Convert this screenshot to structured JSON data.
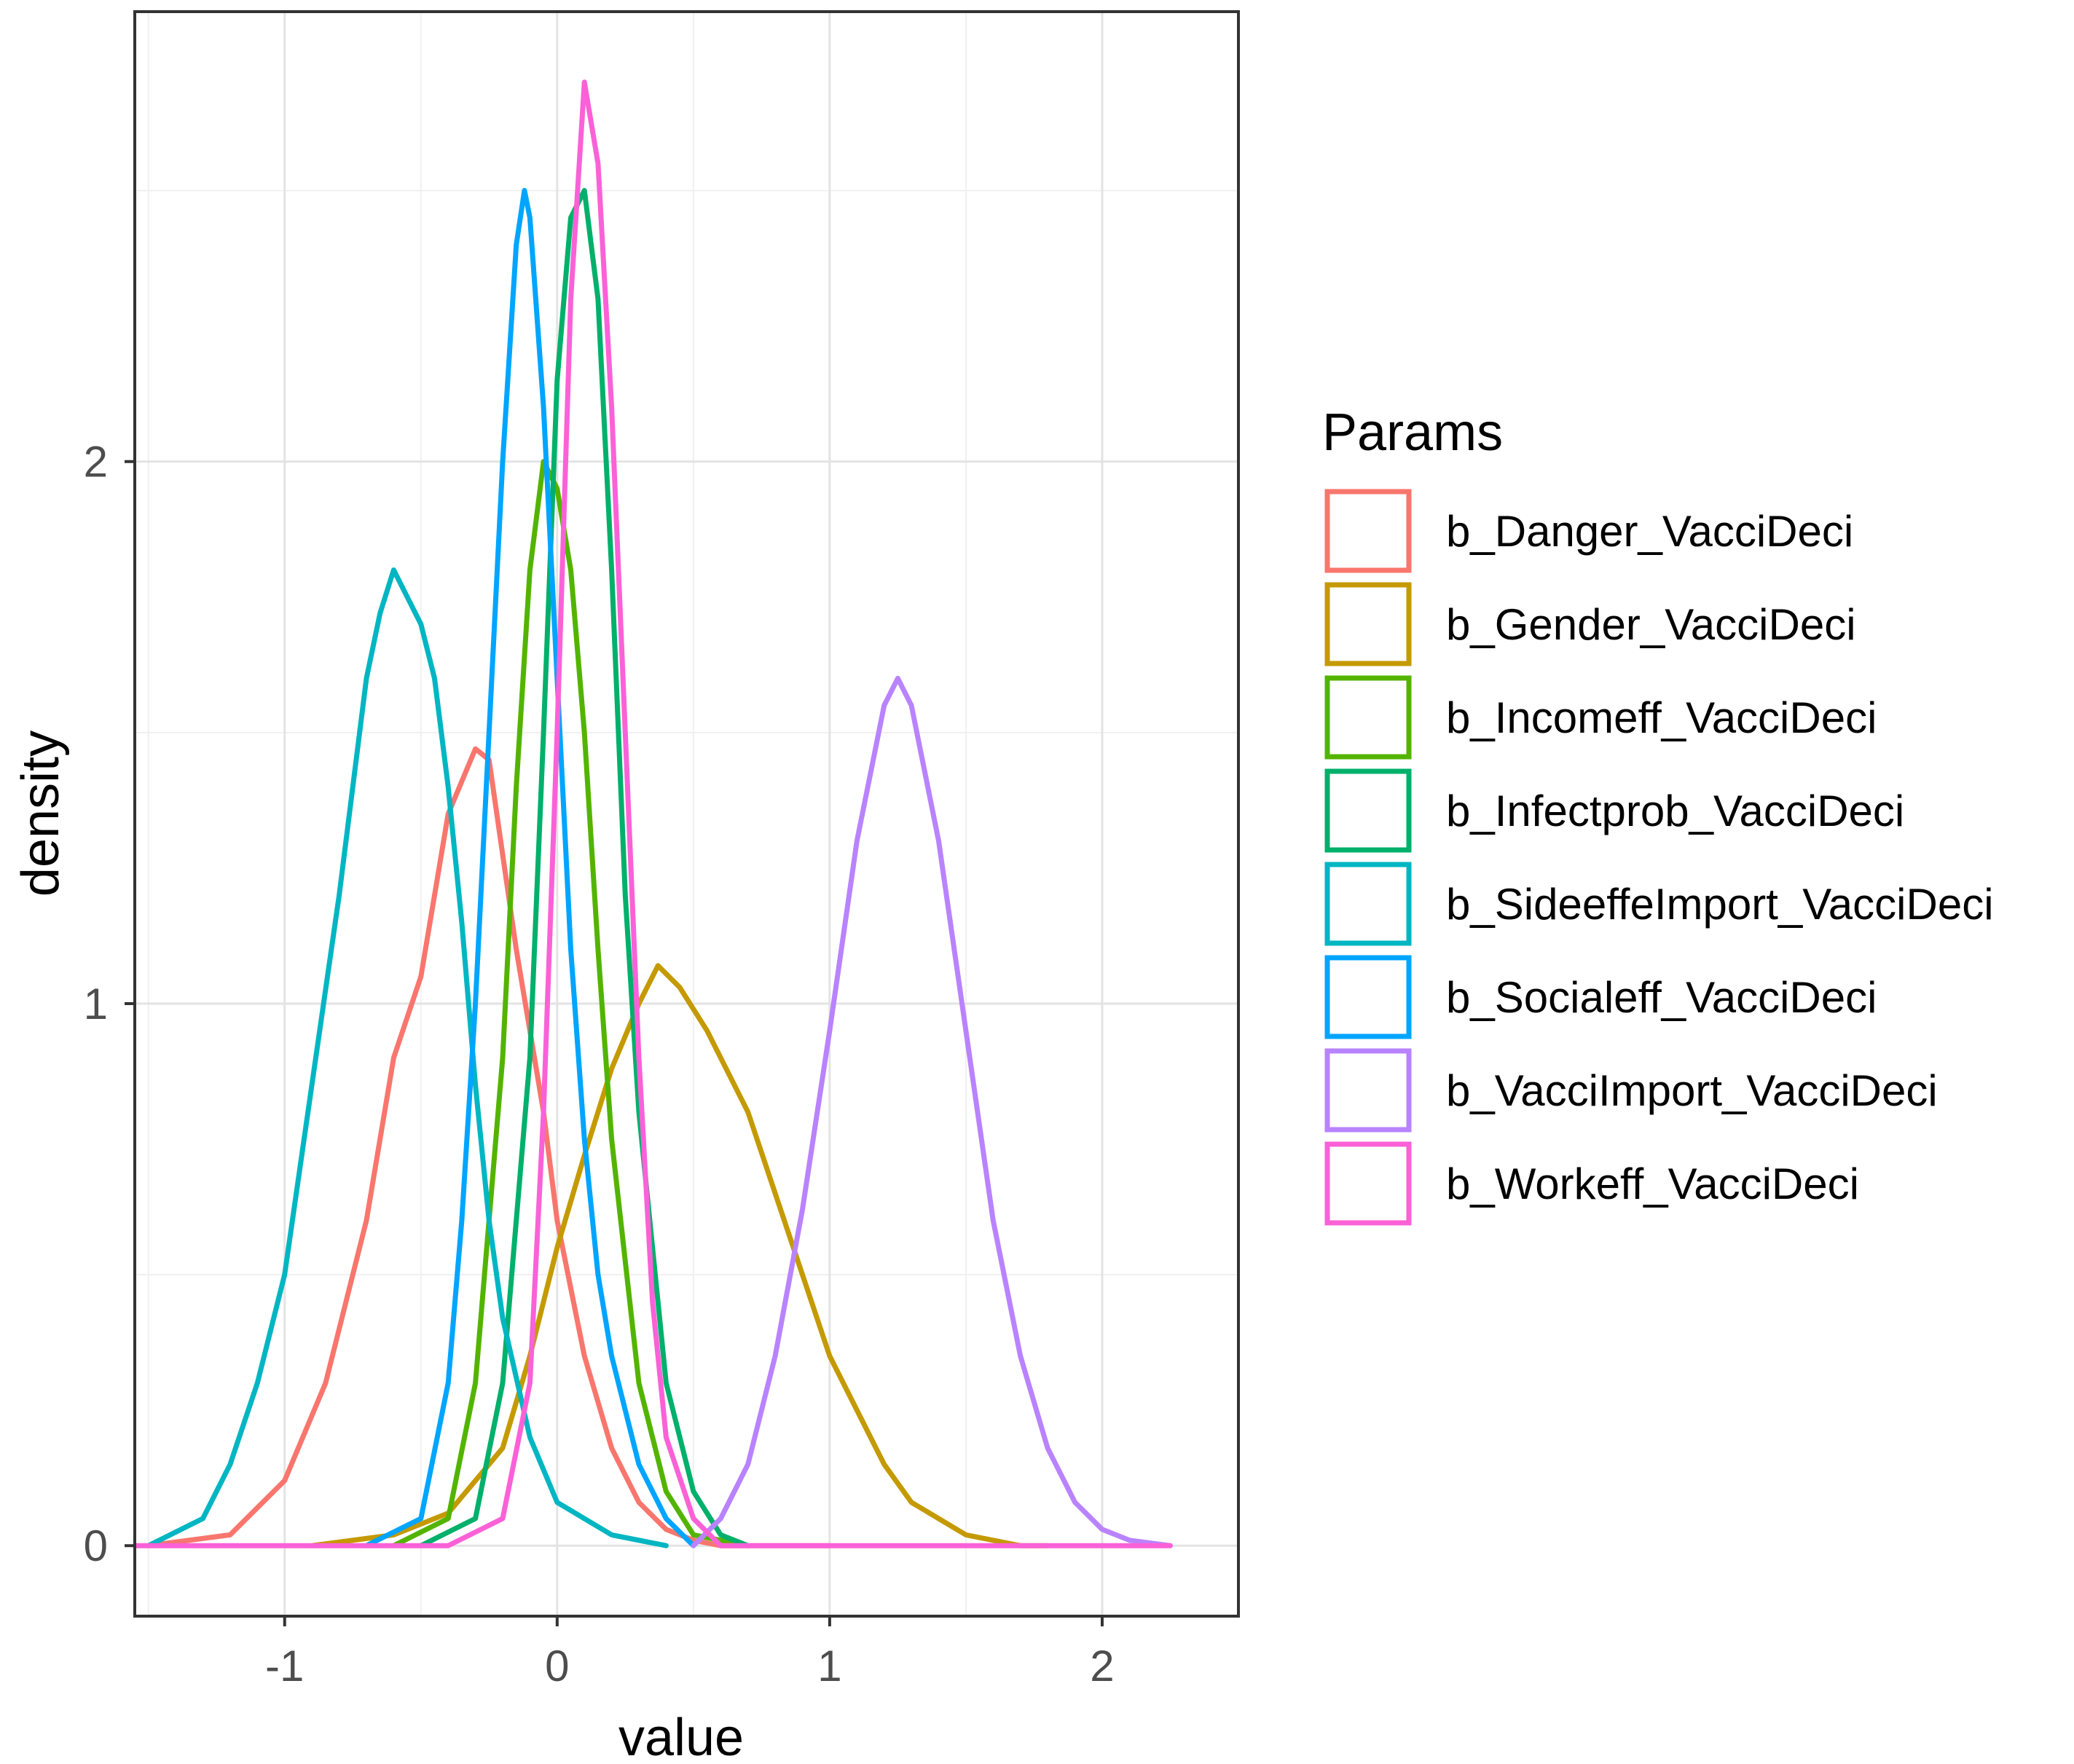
{
  "chart_data": {
    "type": "line",
    "kind": "density",
    "xlabel": "value",
    "ylabel": "density",
    "xlim": [
      -1.55,
      2.5
    ],
    "ylim": [
      -0.13,
      2.83
    ],
    "x_ticks": [
      -1,
      0,
      1,
      2
    ],
    "x_tick_labels": [
      "-1",
      "0",
      "1",
      "2"
    ],
    "y_ticks": [
      0,
      1,
      2
    ],
    "y_tick_labels": [
      "0",
      "1",
      "2"
    ],
    "y_minor_ticks": [
      0.5,
      1.5,
      2.5
    ],
    "x_minor_ticks": [
      -1.5,
      -0.5,
      0.5,
      1.5
    ],
    "grid": true,
    "legend": {
      "title": "Params",
      "position": "right"
    },
    "series": [
      {
        "name": "b_Danger_VacciDeci",
        "color": "#F8766D",
        "x": [
          -1.5,
          -1.2,
          -1.0,
          -0.85,
          -0.7,
          -0.6,
          -0.5,
          -0.4,
          -0.3,
          -0.25,
          -0.15,
          -0.05,
          0.0,
          0.1,
          0.2,
          0.3,
          0.4,
          0.5,
          0.6,
          0.8,
          1.0
        ],
        "y": [
          0,
          0.02,
          0.12,
          0.3,
          0.6,
          0.9,
          1.05,
          1.35,
          1.47,
          1.45,
          1.1,
          0.8,
          0.6,
          0.35,
          0.18,
          0.08,
          0.03,
          0.01,
          0,
          0,
          0
        ]
      },
      {
        "name": "b_Gender_VacciDeci",
        "color": "#C49A00",
        "x": [
          -0.9,
          -0.6,
          -0.4,
          -0.2,
          -0.1,
          0.0,
          0.1,
          0.2,
          0.3,
          0.37,
          0.45,
          0.55,
          0.7,
          0.8,
          0.9,
          1.0,
          1.1,
          1.2,
          1.3,
          1.5,
          1.7,
          1.8
        ],
        "y": [
          0,
          0.02,
          0.06,
          0.18,
          0.35,
          0.55,
          0.72,
          0.88,
          1.0,
          1.07,
          1.03,
          0.95,
          0.8,
          0.65,
          0.5,
          0.35,
          0.25,
          0.15,
          0.08,
          0.02,
          0,
          0
        ]
      },
      {
        "name": "b_Incomeff_VacciDeci",
        "color": "#53B400",
        "x": [
          -0.6,
          -0.4,
          -0.3,
          -0.2,
          -0.15,
          -0.1,
          -0.05,
          0.0,
          0.05,
          0.1,
          0.15,
          0.2,
          0.3,
          0.4,
          0.5,
          0.7
        ],
        "y": [
          0,
          0.05,
          0.3,
          0.9,
          1.4,
          1.8,
          2.0,
          1.95,
          1.8,
          1.5,
          1.1,
          0.75,
          0.3,
          0.1,
          0.02,
          0
        ]
      },
      {
        "name": "b_Infectprob_VacciDeci",
        "color": "#00B06B",
        "x": [
          -0.5,
          -0.3,
          -0.2,
          -0.1,
          -0.05,
          0.0,
          0.05,
          0.1,
          0.15,
          0.2,
          0.25,
          0.3,
          0.4,
          0.5,
          0.6,
          0.7
        ],
        "y": [
          0,
          0.05,
          0.3,
          0.9,
          1.5,
          2.15,
          2.45,
          2.5,
          2.3,
          1.8,
          1.2,
          0.8,
          0.3,
          0.1,
          0.02,
          0
        ]
      },
      {
        "name": "b_SideeffeImport_VacciDeci",
        "color": "#00B6C2",
        "x": [
          -1.5,
          -1.3,
          -1.2,
          -1.1,
          -1.0,
          -0.9,
          -0.8,
          -0.7,
          -0.65,
          -0.6,
          -0.55,
          -0.5,
          -0.45,
          -0.4,
          -0.35,
          -0.3,
          -0.25,
          -0.2,
          -0.1,
          0.0,
          0.2,
          0.4
        ],
        "y": [
          0,
          0.05,
          0.15,
          0.3,
          0.5,
          0.85,
          1.2,
          1.6,
          1.72,
          1.8,
          1.75,
          1.7,
          1.6,
          1.4,
          1.15,
          0.85,
          0.6,
          0.42,
          0.2,
          0.08,
          0.02,
          0
        ]
      },
      {
        "name": "b_Socialeff_VacciDeci",
        "color": "#00A5FF",
        "x": [
          -0.7,
          -0.5,
          -0.4,
          -0.35,
          -0.3,
          -0.25,
          -0.2,
          -0.15,
          -0.12,
          -0.1,
          -0.05,
          0.0,
          0.05,
          0.1,
          0.15,
          0.2,
          0.3,
          0.4,
          0.5
        ],
        "y": [
          0,
          0.05,
          0.3,
          0.6,
          1.0,
          1.5,
          2.0,
          2.4,
          2.5,
          2.45,
          2.1,
          1.6,
          1.1,
          0.75,
          0.5,
          0.35,
          0.15,
          0.05,
          0
        ]
      },
      {
        "name": "b_VacciImport_VacciDeci",
        "color": "#B983FF",
        "x": [
          0.5,
          0.6,
          0.7,
          0.8,
          0.9,
          1.0,
          1.1,
          1.2,
          1.25,
          1.3,
          1.4,
          1.5,
          1.6,
          1.7,
          1.8,
          1.9,
          2.0,
          2.1,
          2.25
        ],
        "y": [
          0,
          0.05,
          0.15,
          0.35,
          0.62,
          0.95,
          1.3,
          1.55,
          1.6,
          1.55,
          1.3,
          0.95,
          0.6,
          0.35,
          0.18,
          0.08,
          0.03,
          0.01,
          0
        ]
      },
      {
        "name": "b_Workeff_VacciDeci",
        "color": "#FB61D7",
        "x": [
          -1.55,
          -0.4,
          -0.2,
          -0.1,
          -0.05,
          0.0,
          0.05,
          0.1,
          0.15,
          0.2,
          0.25,
          0.3,
          0.35,
          0.4,
          0.5,
          0.6,
          2.25
        ],
        "y": [
          0,
          0,
          0.05,
          0.3,
          0.8,
          1.5,
          2.3,
          2.7,
          2.55,
          2.1,
          1.5,
          0.9,
          0.45,
          0.2,
          0.05,
          0,
          0
        ]
      }
    ]
  }
}
